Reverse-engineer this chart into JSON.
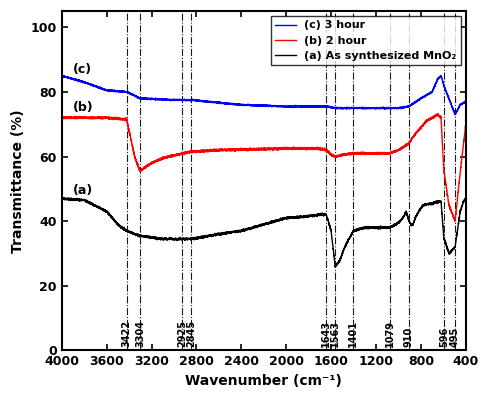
{
  "xlabel": "Wavenumber (cm⁻¹)",
  "ylabel": "Transmittance (%)",
  "xlim": [
    4000,
    400
  ],
  "ylim": [
    0,
    105
  ],
  "yticks": [
    0,
    20,
    40,
    60,
    80,
    100
  ],
  "xticks": [
    4000,
    3600,
    3200,
    2800,
    2400,
    2000,
    1600,
    1200,
    800,
    400
  ],
  "legend": [
    "(c) 3 hour",
    "(b) 2 hour",
    "(a) As synthesized MnO₂"
  ],
  "line_colors": [
    "blue",
    "red",
    "black"
  ],
  "vlines": [
    3422,
    3304,
    2925,
    2845,
    1643,
    1563,
    1401,
    1079,
    910,
    596,
    495
  ],
  "vline_labels": [
    "3422",
    "3304",
    "2925",
    "2845",
    "1643",
    "1563",
    "1401",
    "1079",
    "910",
    "596",
    "495"
  ],
  "label_c": "(c)",
  "label_b": "(b)",
  "label_a": "(a)",
  "spectrum_c_pts": [
    [
      4000,
      85
    ],
    [
      3800,
      83
    ],
    [
      3600,
      80.5
    ],
    [
      3422,
      80
    ],
    [
      3304,
      78
    ],
    [
      3000,
      77.5
    ],
    [
      2925,
      77.5
    ],
    [
      2845,
      77.5
    ],
    [
      2400,
      76
    ],
    [
      2000,
      75.5
    ],
    [
      1800,
      75.5
    ],
    [
      1643,
      75.5
    ],
    [
      1563,
      75
    ],
    [
      1401,
      75
    ],
    [
      1200,
      75
    ],
    [
      1079,
      75
    ],
    [
      1000,
      75
    ],
    [
      910,
      75.5
    ],
    [
      800,
      78
    ],
    [
      700,
      80
    ],
    [
      650,
      84
    ],
    [
      620,
      85
    ],
    [
      596,
      82
    ],
    [
      550,
      78
    ],
    [
      495,
      73
    ],
    [
      450,
      76
    ],
    [
      400,
      77
    ]
  ],
  "spectrum_b_pts": [
    [
      4000,
      72
    ],
    [
      3800,
      72
    ],
    [
      3600,
      72
    ],
    [
      3422,
      71.5
    ],
    [
      3350,
      60
    ],
    [
      3304,
      55.5
    ],
    [
      3200,
      58
    ],
    [
      3100,
      59.5
    ],
    [
      2925,
      61
    ],
    [
      2845,
      61.5
    ],
    [
      2600,
      62
    ],
    [
      2000,
      62.5
    ],
    [
      1800,
      62.5
    ],
    [
      1700,
      62.5
    ],
    [
      1643,
      62
    ],
    [
      1600,
      60.5
    ],
    [
      1563,
      60
    ],
    [
      1500,
      60.5
    ],
    [
      1401,
      61
    ],
    [
      1300,
      61
    ],
    [
      1200,
      61
    ],
    [
      1079,
      61
    ],
    [
      1000,
      62
    ],
    [
      910,
      64
    ],
    [
      850,
      67
    ],
    [
      800,
      69
    ],
    [
      750,
      71
    ],
    [
      700,
      72
    ],
    [
      650,
      73
    ],
    [
      620,
      72
    ],
    [
      596,
      56
    ],
    [
      550,
      45
    ],
    [
      495,
      40
    ],
    [
      450,
      55
    ],
    [
      400,
      70
    ]
  ],
  "spectrum_a_pts": [
    [
      4000,
      47
    ],
    [
      3800,
      46.5
    ],
    [
      3600,
      43
    ],
    [
      3500,
      39
    ],
    [
      3422,
      37
    ],
    [
      3304,
      35.5
    ],
    [
      3100,
      34.5
    ],
    [
      2925,
      34.5
    ],
    [
      2845,
      34.5
    ],
    [
      2600,
      36
    ],
    [
      2400,
      37
    ],
    [
      2200,
      39
    ],
    [
      2000,
      41
    ],
    [
      1800,
      41.5
    ],
    [
      1700,
      42
    ],
    [
      1643,
      42
    ],
    [
      1600,
      37
    ],
    [
      1563,
      26
    ],
    [
      1520,
      28
    ],
    [
      1490,
      31
    ],
    [
      1450,
      34
    ],
    [
      1401,
      37
    ],
    [
      1350,
      37.5
    ],
    [
      1300,
      38
    ],
    [
      1200,
      38
    ],
    [
      1079,
      38
    ],
    [
      1000,
      39.5
    ],
    [
      960,
      41
    ],
    [
      930,
      43
    ],
    [
      910,
      40.5
    ],
    [
      890,
      39
    ],
    [
      870,
      39
    ],
    [
      850,
      41
    ],
    [
      820,
      43
    ],
    [
      800,
      44
    ],
    [
      780,
      45
    ],
    [
      700,
      45.5
    ],
    [
      650,
      46
    ],
    [
      620,
      46
    ],
    [
      596,
      35
    ],
    [
      550,
      30
    ],
    [
      495,
      32
    ],
    [
      450,
      43
    ],
    [
      420,
      46
    ],
    [
      400,
      47
    ]
  ]
}
